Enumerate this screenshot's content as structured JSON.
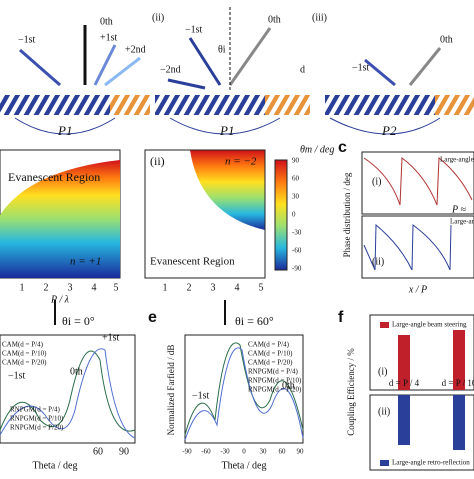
{
  "top": {
    "labels_i": [
      "−1st",
      "0th",
      "+1st",
      "+2nd"
    ],
    "labels_ii": [
      "(ii)",
      "−1st",
      "0th",
      "−2nd",
      "θi",
      "d"
    ],
    "labels_iii": [
      "(iii)",
      "−1st",
      "0th"
    ],
    "periods": [
      "P1",
      "P1",
      "P2"
    ]
  },
  "b": {
    "panel_i": {
      "region": "Evanescent Region",
      "order": "n = +1",
      "xlabel": "P / λ",
      "xticks": [
        "1",
        "2",
        "3",
        "4",
        "5"
      ]
    },
    "panel_ii": {
      "tag": "(ii)",
      "order": "n = −2",
      "region": "Evanescent Region",
      "xticks": [
        "1",
        "2",
        "3",
        "4",
        "5"
      ]
    },
    "colorbar": {
      "label": "θm / deg",
      "ticks": [
        "90",
        "60",
        "30",
        "0",
        "-30",
        "-60",
        "-90"
      ]
    }
  },
  "c": {
    "letter": "c",
    "ylabel": "Phase distribution / deg",
    "xlabel": "x / P",
    "tags": [
      "(i)",
      "(ii)"
    ],
    "legend": [
      "Large-angle",
      "Large-angle"
    ],
    "note": "P ≈"
  },
  "d": {
    "incidence": "θi = 0°",
    "legend": [
      "CAM(d = P/4)",
      "CAM(d = P/10)",
      "CAM(d = P/20)",
      "RNPGM(d = P/4)",
      "RNPGM(d = P/10)",
      "RNPGM(d = P/20)"
    ],
    "orders": [
      "+1st",
      "−1st",
      "0th"
    ],
    "xticks": [
      "60",
      "90"
    ],
    "xlabel": "Theta / deg"
  },
  "e": {
    "letter": "e",
    "incidence": "θi = 60°",
    "ylabel": "Normalized Farfield / dB",
    "legend": [
      "CAM(d = P/4)",
      "CAM(d = P/10)",
      "CAM(d = P/20)",
      "RNPGM(d = P/4)",
      "RNPGM(d = P/10)",
      "RNPGM(d = P/20)"
    ],
    "orders": [
      "−1st",
      "0th"
    ],
    "xticks": [
      "-90",
      "-60",
      "-30",
      "0",
      "30",
      "60",
      "90"
    ],
    "xlabel": "Theta / deg"
  },
  "f": {
    "letter": "f",
    "ylabel": "Coupling Efficiency / %",
    "legend": [
      "Large-angle beam steering",
      "Large-angle retro-reflection"
    ],
    "tags": [
      "(i)",
      "(ii)"
    ],
    "xticks": [
      "d = P / 4",
      "d = P / 10"
    ]
  }
}
